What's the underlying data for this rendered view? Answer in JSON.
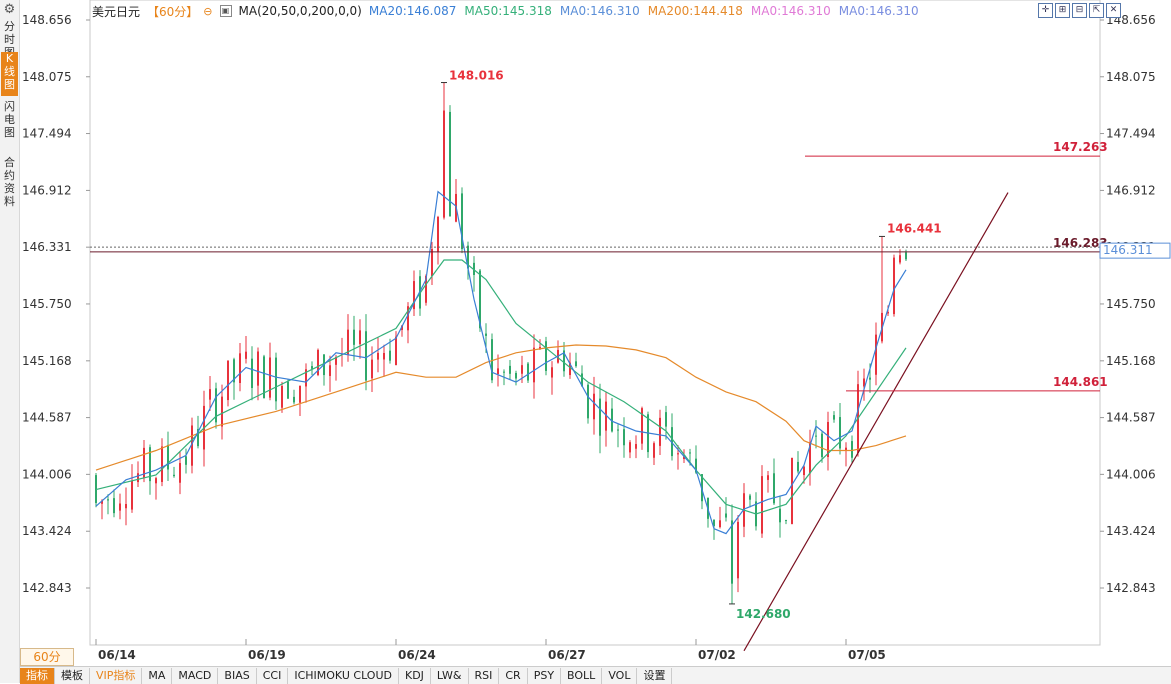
{
  "left_tabs": [
    {
      "label": "分时图",
      "active": false
    },
    {
      "label": "K线图",
      "active": true
    },
    {
      "label": "闪电图",
      "active": false
    },
    {
      "label": "合约资料",
      "active": false
    }
  ],
  "header": {
    "symbol": "美元日元",
    "period": "【60分】",
    "ma_params": "MA(20,50,0,200,0,0)",
    "ma_values": [
      {
        "label": "MA20:146.087",
        "color": "#3a7fd5"
      },
      {
        "label": "MA50:145.318",
        "color": "#35b07a"
      },
      {
        "label": "MA0:146.310",
        "color": "#5b8fd8"
      },
      {
        "label": "MA200:144.418",
        "color": "#e58a2b"
      },
      {
        "label": "MA0:146.310",
        "color": "#e07ad6"
      },
      {
        "label": "MA0:146.310",
        "color": "#7a8ee0"
      }
    ]
  },
  "period_button": "60分",
  "bottom_tabs": [
    "指标",
    "模板",
    "VIP指标",
    "MA",
    "MACD",
    "BIAS",
    "CCI",
    "ICHIMOKU CLOUD",
    "KDJ",
    "LW&",
    "RSI",
    "CR",
    "PSY",
    "BOLL",
    "VOL",
    "设置"
  ],
  "colors": {
    "up": "#e8323c",
    "down": "#2fa86a",
    "ma20": "#3a7fd5",
    "ma50": "#35b07a",
    "ma200": "#e58a2b",
    "accent": "#e8841a"
  },
  "chart_data": {
    "type": "candlestick",
    "y_ticks": [
      "148.656",
      "148.075",
      "147.494",
      "146.912",
      "146.331",
      "145.750",
      "145.168",
      "144.587",
      "144.006",
      "143.424",
      "142.843"
    ],
    "y_range": [
      142.31,
      148.78
    ],
    "x_labels": [
      "06/14",
      "06/19",
      "06/24",
      "06/27",
      "07/02",
      "07/05"
    ],
    "annotations": {
      "high": "148.016",
      "low": "142.680",
      "recent_high": "146.441",
      "level_high": "147.263",
      "level_mid": "146.283",
      "level_low": "144.861",
      "current": "146.311"
    },
    "levels": [
      147.263,
      146.283,
      144.861
    ],
    "current_price": 146.311,
    "ma20": [
      [
        0,
        143.68
      ],
      [
        5,
        143.95
      ],
      [
        10,
        144.05
      ],
      [
        15,
        144.2
      ],
      [
        20,
        144.8
      ],
      [
        25,
        145.1
      ],
      [
        30,
        145.0
      ],
      [
        35,
        144.95
      ],
      [
        40,
        145.25
      ],
      [
        45,
        145.2
      ],
      [
        50,
        145.4
      ],
      [
        55,
        146.0
      ],
      [
        57,
        146.9
      ],
      [
        60,
        146.75
      ],
      [
        63,
        145.8
      ],
      [
        66,
        145.05
      ],
      [
        70,
        144.95
      ],
      [
        75,
        145.15
      ],
      [
        78,
        145.25
      ],
      [
        82,
        144.8
      ],
      [
        86,
        144.55
      ],
      [
        90,
        144.45
      ],
      [
        95,
        144.4
      ],
      [
        100,
        144.05
      ],
      [
        103,
        143.45
      ],
      [
        105,
        143.4
      ],
      [
        108,
        143.65
      ],
      [
        112,
        143.75
      ],
      [
        115,
        143.8
      ],
      [
        118,
        144.1
      ],
      [
        120,
        144.5
      ],
      [
        123,
        144.35
      ],
      [
        126,
        144.45
      ],
      [
        130,
        145.3
      ],
      [
        133,
        145.9
      ],
      [
        135,
        146.1
      ]
    ],
    "ma50": [
      [
        0,
        143.85
      ],
      [
        10,
        144.0
      ],
      [
        20,
        144.6
      ],
      [
        30,
        144.9
      ],
      [
        40,
        145.2
      ],
      [
        50,
        145.5
      ],
      [
        55,
        145.95
      ],
      [
        58,
        146.2
      ],
      [
        61,
        146.2
      ],
      [
        65,
        146.0
      ],
      [
        70,
        145.55
      ],
      [
        76,
        145.25
      ],
      [
        82,
        144.95
      ],
      [
        88,
        144.75
      ],
      [
        95,
        144.45
      ],
      [
        100,
        144.05
      ],
      [
        105,
        143.7
      ],
      [
        110,
        143.6
      ],
      [
        115,
        143.7
      ],
      [
        120,
        144.1
      ],
      [
        125,
        144.4
      ],
      [
        130,
        144.85
      ],
      [
        135,
        145.3
      ]
    ],
    "ma200": [
      [
        0,
        144.05
      ],
      [
        10,
        144.25
      ],
      [
        20,
        144.5
      ],
      [
        30,
        144.65
      ],
      [
        40,
        144.85
      ],
      [
        50,
        145.05
      ],
      [
        55,
        145.0
      ],
      [
        60,
        145.0
      ],
      [
        65,
        145.15
      ],
      [
        70,
        145.25
      ],
      [
        75,
        145.3
      ],
      [
        80,
        145.33
      ],
      [
        85,
        145.32
      ],
      [
        90,
        145.28
      ],
      [
        95,
        145.2
      ],
      [
        100,
        145.0
      ],
      [
        105,
        144.85
      ],
      [
        110,
        144.75
      ],
      [
        115,
        144.55
      ],
      [
        118,
        144.35
      ],
      [
        122,
        144.25
      ],
      [
        126,
        144.25
      ],
      [
        130,
        144.3
      ],
      [
        135,
        144.4
      ]
    ],
    "trendline": {
      "from": [
        108,
        142.2
      ],
      "to": [
        152,
        146.89
      ]
    }
  }
}
